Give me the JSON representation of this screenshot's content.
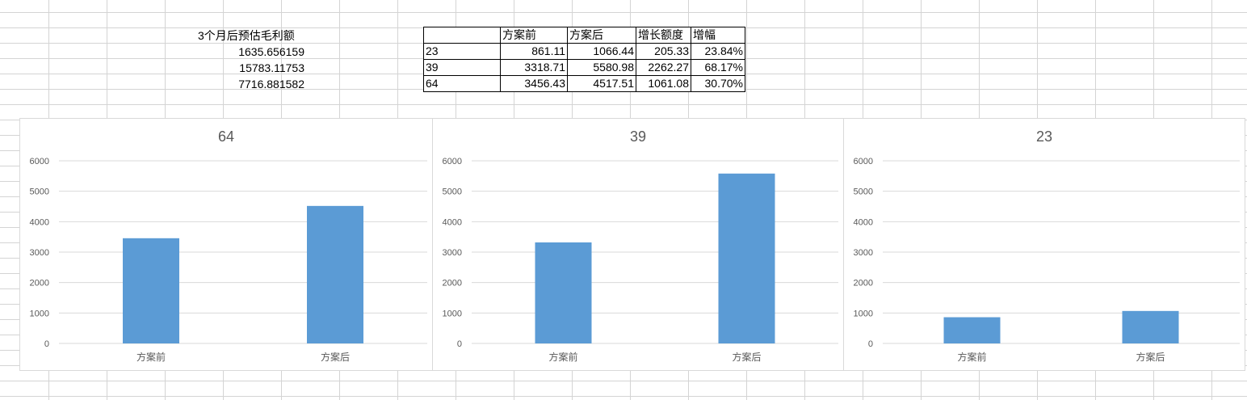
{
  "sheet": {
    "header_label": "3个月后预估毛利额",
    "values": [
      "1635.656159",
      "15783.11753",
      "7716.881582"
    ]
  },
  "table": {
    "headers": [
      "",
      "方案前",
      "方案后",
      "增长额度",
      "增幅"
    ],
    "rows": [
      [
        "23",
        "861.11",
        "1066.44",
        "205.33",
        "23.84%"
      ],
      [
        "39",
        "3318.71",
        "5580.98",
        "2262.27",
        "68.17%"
      ],
      [
        "64",
        "3456.43",
        "4517.51",
        "1061.08",
        "30.70%"
      ]
    ]
  },
  "colors": {
    "bar": "#5b9bd5",
    "gridline": "#d9d9d9",
    "axis_text": "#595959"
  },
  "chart_data": [
    {
      "type": "bar",
      "title": "64",
      "categories": [
        "方案前",
        "方案后"
      ],
      "values": [
        3456.43,
        4517.51
      ],
      "ylim": [
        0,
        6000
      ],
      "yticks": [
        0,
        1000,
        2000,
        3000,
        4000,
        5000,
        6000
      ],
      "grid": true,
      "legend": "none"
    },
    {
      "type": "bar",
      "title": "39",
      "categories": [
        "方案前",
        "方案后"
      ],
      "values": [
        3318.71,
        5580.98
      ],
      "ylim": [
        0,
        6000
      ],
      "yticks": [
        0,
        1000,
        2000,
        3000,
        4000,
        5000,
        6000
      ],
      "grid": true,
      "legend": "none"
    },
    {
      "type": "bar",
      "title": "23",
      "categories": [
        "方案前",
        "方案后"
      ],
      "values": [
        861.11,
        1066.44
      ],
      "ylim": [
        0,
        6000
      ],
      "yticks": [
        0,
        1000,
        2000,
        3000,
        4000,
        5000,
        6000
      ],
      "grid": true,
      "legend": "none"
    }
  ]
}
